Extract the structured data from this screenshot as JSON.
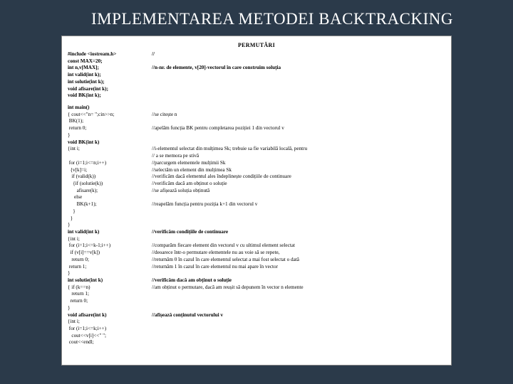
{
  "background_color": "#2b3a4a",
  "panel_background": "#ffffff",
  "text_color": "#000000",
  "title_color": "#ffffff",
  "title": "IMPLEMENTAREA METODEI BACKTRACKING",
  "header": "PERMUTĂRI",
  "rows": [
    {
      "code": "#include <iostream.h>",
      "comment": "//",
      "bold": true
    },
    {
      "code": "const MAX=20;",
      "comment": "",
      "bold": true
    },
    {
      "code": "int n,v[MAX];",
      "comment": "//n-nr. de elemente, v[20]-vectorul în care construim soluția",
      "bold": true
    },
    {
      "code": "int valid(int k);",
      "comment": "",
      "bold": true
    },
    {
      "code": "int solutie(int k);",
      "comment": "",
      "bold": true
    },
    {
      "code": "void afisare(int k);",
      "comment": "",
      "bold": true
    },
    {
      "code": "void BK(int k);",
      "comment": "",
      "bold": true
    },
    {
      "spacer": true
    },
    {
      "code": "int main()",
      "comment": "",
      "bold": true
    },
    {
      "code": "{ cout<<\"n= \";cin>>n;",
      "comment": "//se citește n"
    },
    {
      "code": " BK(1);",
      "comment": ""
    },
    {
      "code": " return 0;",
      "comment": "//apelăm funcția BK pentru completarea poziției 1 din vectorul v"
    },
    {
      "code": "}",
      "comment": ""
    },
    {
      "code": "void BK(int k)",
      "comment": "",
      "bold": true
    },
    {
      "code": "{int i;",
      "comment": "//i-elementul selectat din mulțimea Sk; trebuie sa fie variabilă locală, pentru"
    },
    {
      "code": "",
      "comment": "// a se memora pe stivă"
    },
    {
      "code": " for (i=1;i<=n;i++)",
      "comment": "//parcurgem elementele mulțimii Sk"
    },
    {
      "code": "  {v[k]=i;",
      "comment": "//selectăm un element din mulțimea Sk"
    },
    {
      "code": "   if (valid(k))",
      "comment": "//verificăm dacă elementul ales îndeplinește condițiile de continuare"
    },
    {
      "code": "    {if (solutie(k))",
      "comment": "//verificăm dacă am obținut o soluție"
    },
    {
      "code": "       afisare(k);",
      "comment": "//se afișează soluția obținută"
    },
    {
      "code": "     else",
      "comment": ""
    },
    {
      "code": "       BK(k+1);",
      "comment": "//reapelăm funcția pentru poziția k+1 din vectorul v"
    },
    {
      "code": "    }",
      "comment": ""
    },
    {
      "code": "  }",
      "comment": ""
    },
    {
      "code": "}",
      "comment": ""
    },
    {
      "code": "int valid(int k)",
      "comment": "//verificăm condițiile de continuare",
      "bold": true
    },
    {
      "code": "{int i;",
      "comment": ""
    },
    {
      "code": " for (i=1;i<=k-1;i++)",
      "comment": "//comparăm fiecare element din vectorul v cu ultimul element selectat"
    },
    {
      "code": "  if (v[i]==v[k])",
      "comment": "//deoarece într-o permutare elementele nu au voie să se repete,"
    },
    {
      "code": "   return 0;",
      "comment": "//returnăm 0 în cazul în care elementul selectat a mai fost selectat o dată"
    },
    {
      "code": " return 1;",
      "comment": "//returnăm 1 în cazul în care elementul nu mai apare în vector"
    },
    {
      "code": "}",
      "comment": ""
    },
    {
      "code": "int solutie(int k)",
      "comment": "//verificăm dacă am obținut o soluție",
      "bold": true
    },
    {
      "code": "{ if (k==n)",
      "comment": "//am obținut o permutare, dacă am reușit să depunem în vector n elemente"
    },
    {
      "code": "   return 1;",
      "comment": ""
    },
    {
      "code": "  return 0;",
      "comment": ""
    },
    {
      "code": "}",
      "comment": ""
    },
    {
      "code": "void afisare(int k)",
      "comment": "//afișează conținutul vectorului v",
      "bold": true
    },
    {
      "code": "{int i;",
      "comment": ""
    },
    {
      "code": " for (i=1;i<=k;i++)",
      "comment": ""
    },
    {
      "code": "   cout<<v[i]<<\" \";",
      "comment": ""
    },
    {
      "code": " cout<<endl;",
      "comment": ""
    }
  ]
}
